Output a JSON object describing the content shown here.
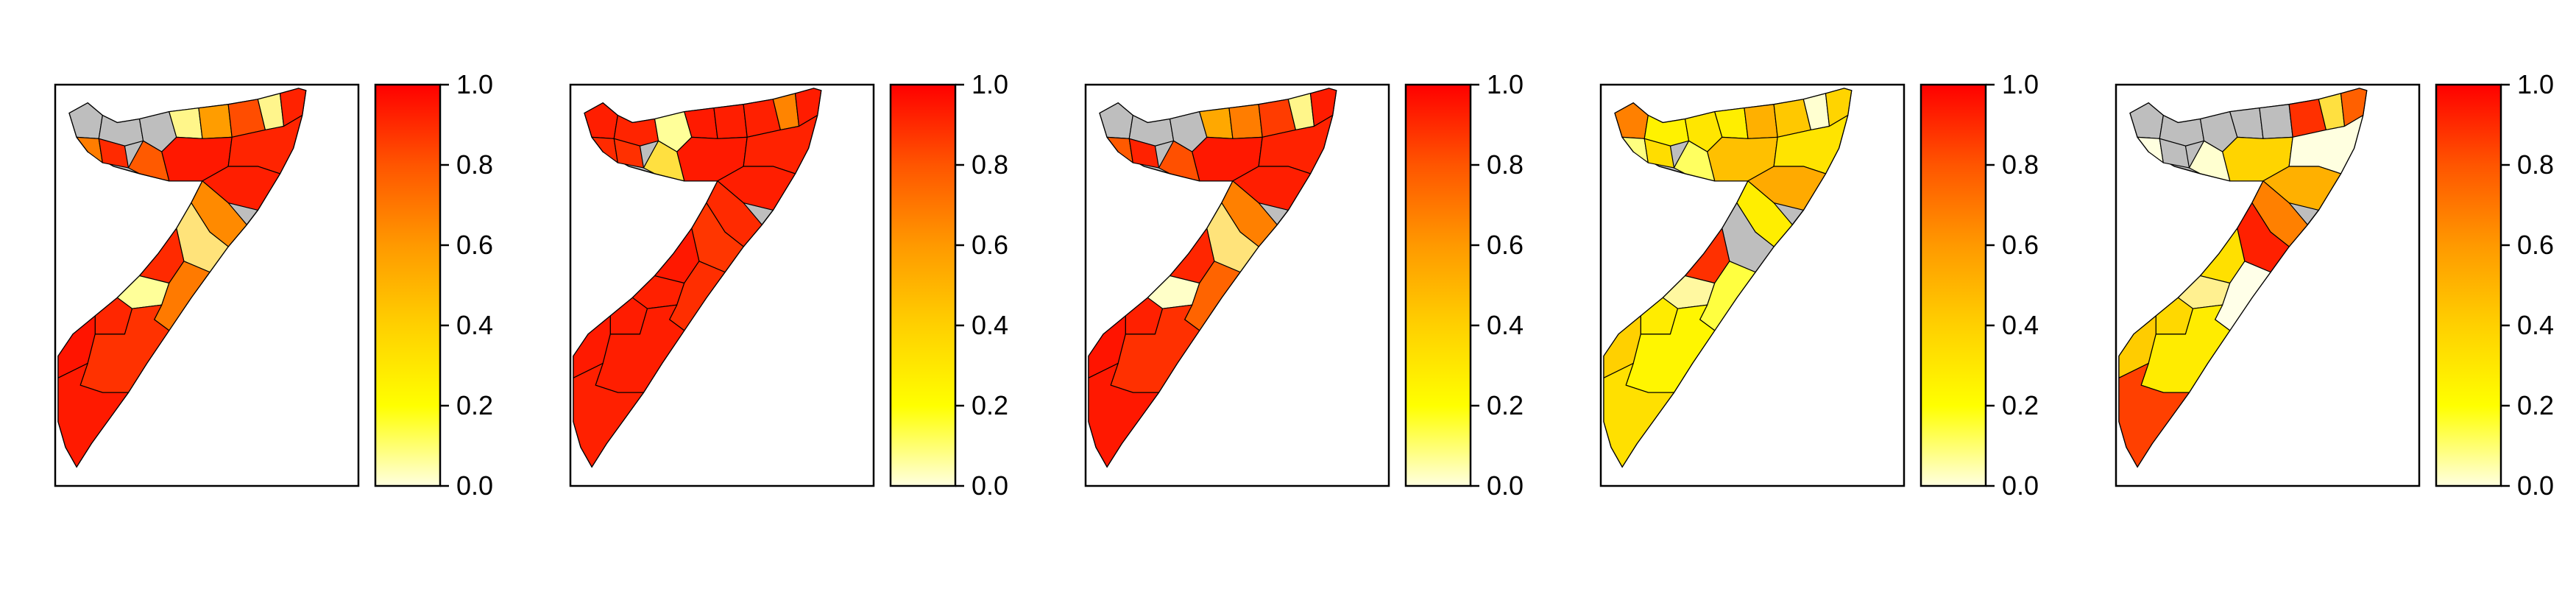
{
  "figure": {
    "background": "#ffffff",
    "no_data_color": "#bebebe",
    "border_color": "#000000",
    "colorbar": {
      "ticks": [
        "0.0",
        "0.2",
        "0.4",
        "0.6",
        "0.8",
        "1.0"
      ],
      "range": [
        0,
        1
      ],
      "stops": [
        "#ffffe0",
        "#ffff00",
        "#ffd000",
        "#ff9900",
        "#ff5500",
        "#ff0000"
      ]
    }
  },
  "chart_data": [
    {
      "type": "heatmap",
      "panel": 1,
      "map_regions": [
        "#bebebe",
        "#bebebe",
        "#bebebe",
        "#fff68a",
        "#ff7d00",
        "#ff2a00",
        "#ff9d00",
        "#ff4d00",
        "#fff58c",
        "#ff2200",
        "#ff1800",
        "#ff2400",
        "#ff5a00",
        "#ff1e00",
        "#ff8a00",
        "#ffe37a",
        "#ff2a00",
        "#ffff99",
        "#ff2600",
        "#ff1400",
        "#ff7a00",
        "#ff3200",
        "#ff1a00"
      ],
      "colorbar": {
        "range": [
          0,
          1
        ],
        "ticks": [
          "0.0",
          "0.2",
          "0.4",
          "0.6",
          "0.8",
          "1.0"
        ]
      }
    },
    {
      "type": "heatmap",
      "panel": 2,
      "map_regions": [
        "#ff1e00",
        "#ff2400",
        "#ffff99",
        "#ff1a00",
        "#ff2a00",
        "#ff3000",
        "#ff1e00",
        "#ff2000",
        "#ff8400",
        "#ff1c00",
        "#ff1a00",
        "#ff2200",
        "#ffe040",
        "#ff1e00",
        "#ff2a00",
        "#ff3600",
        "#ff1800",
        "#ff2000",
        "#ff1c00",
        "#ff1a00",
        "#ff2e00",
        "#ff1e00",
        "#ff2000"
      ],
      "colorbar": {
        "range": [
          0,
          1
        ],
        "ticks": [
          "0.0",
          "0.2",
          "0.4",
          "0.6",
          "0.8",
          "1.0"
        ]
      }
    },
    {
      "type": "heatmap",
      "panel": 3,
      "map_regions": [
        "#bebebe",
        "#bebebe",
        "#bebebe",
        "#ffa800",
        "#ff5a00",
        "#ff2200",
        "#ff7d00",
        "#ff3c00",
        "#fff68a",
        "#ff1c00",
        "#ff1800",
        "#ff2200",
        "#ff5000",
        "#ff1e00",
        "#ff8000",
        "#ffe37a",
        "#ff2600",
        "#ffffc8",
        "#ff2000",
        "#ff1400",
        "#ff6400",
        "#ff3000",
        "#ff1800"
      ],
      "colorbar": {
        "range": [
          0,
          1
        ],
        "ticks": [
          "0.0",
          "0.2",
          "0.4",
          "0.6",
          "0.8",
          "1.0"
        ]
      }
    },
    {
      "type": "heatmap",
      "panel": 4,
      "map_regions": [
        "#ff8000",
        "#fff200",
        "#ffe600",
        "#ffee00",
        "#ffff80",
        "#ffdd00",
        "#ffb000",
        "#ffc800",
        "#ffffd0",
        "#ffd400",
        "#ffc000",
        "#ffe400",
        "#ffff60",
        "#ffaa00",
        "#ffee00",
        "#bebebe",
        "#ff3000",
        "#fff8a0",
        "#ffec00",
        "#ffd000",
        "#ffff40",
        "#fff600",
        "#ffe000"
      ],
      "colorbar": {
        "range": [
          0,
          1
        ],
        "ticks": [
          "0.0",
          "0.2",
          "0.4",
          "0.6",
          "0.8",
          "1.0"
        ]
      }
    },
    {
      "type": "heatmap",
      "panel": 5,
      "map_regions": [
        "#bebebe",
        "#bebebe",
        "#bebebe",
        "#bebebe",
        "#ffffe0",
        "#bebebe",
        "#bebebe",
        "#ff3000",
        "#ffe040",
        "#ff6000",
        "#ffd400",
        "#ffffe0",
        "#ffffd0",
        "#ffb000",
        "#ff8000",
        "#ff2000",
        "#ffe000",
        "#fff090",
        "#ffd800",
        "#ffcc00",
        "#ffffe8",
        "#ffec00",
        "#ff4000"
      ],
      "colorbar": {
        "range": [
          0,
          1
        ],
        "ticks": [
          "0.0",
          "0.2",
          "0.4",
          "0.6",
          "0.8",
          "1.0"
        ]
      }
    }
  ]
}
